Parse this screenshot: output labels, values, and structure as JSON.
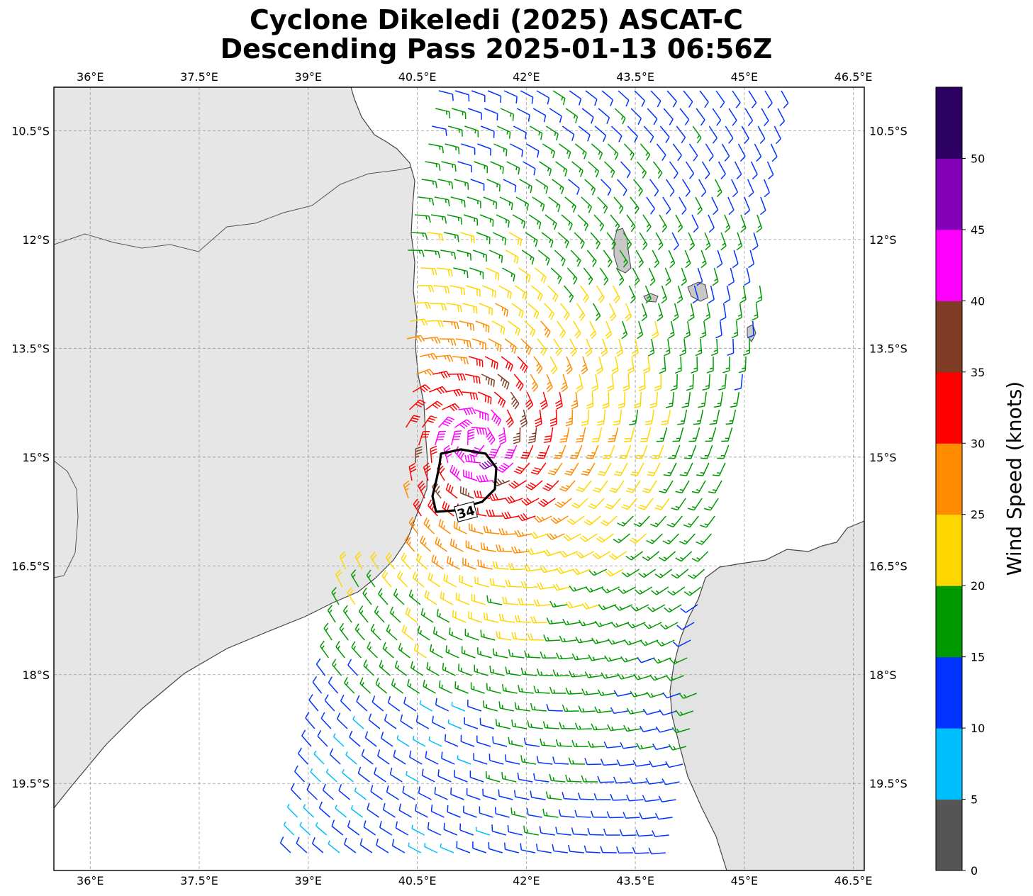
{
  "title": {
    "line1": "Cyclone Dikeledi (2025) ASCAT-C",
    "line2": "Descending Pass 2025-01-13 06:56Z"
  },
  "map": {
    "lon_range": [
      35.5,
      46.65
    ],
    "lat_range": [
      -20.7,
      -9.9
    ],
    "lon_ticks": [
      {
        "value": 36.0,
        "label": "36°E"
      },
      {
        "value": 37.5,
        "label": "37.5°E"
      },
      {
        "value": 39.0,
        "label": "39°E"
      },
      {
        "value": 40.5,
        "label": "40.5°E"
      },
      {
        "value": 42.0,
        "label": "42°E"
      },
      {
        "value": 43.5,
        "label": "43.5°E"
      },
      {
        "value": 45.0,
        "label": "45°E"
      },
      {
        "value": 46.5,
        "label": "46.5°E"
      }
    ],
    "lat_ticks": [
      {
        "value": -10.5,
        "label": "10.5°S"
      },
      {
        "value": -12.0,
        "label": "12°S"
      },
      {
        "value": -13.5,
        "label": "13.5°S"
      },
      {
        "value": -15.0,
        "label": "15°S"
      },
      {
        "value": -16.5,
        "label": "16.5°S"
      },
      {
        "value": -18.0,
        "label": "18°S"
      },
      {
        "value": -19.5,
        "label": "19.5°S"
      }
    ],
    "gridlines": true,
    "storm_center": {
      "lon": 41.3,
      "lat": -14.8
    },
    "contour_label": "34",
    "land_color": "#e6e6e6",
    "coast_color": "#444444"
  },
  "colorbar": {
    "label": "Wind Speed (knots)",
    "bins": [
      {
        "from": 0,
        "to": 5,
        "color": "#555555"
      },
      {
        "from": 5,
        "to": 10,
        "color": "#00bfff"
      },
      {
        "from": 10,
        "to": 15,
        "color": "#0033ff"
      },
      {
        "from": 15,
        "to": 20,
        "color": "#009900"
      },
      {
        "from": 20,
        "to": 25,
        "color": "#ffd700"
      },
      {
        "from": 25,
        "to": 30,
        "color": "#ff8c00"
      },
      {
        "from": 30,
        "to": 35,
        "color": "#ff0000"
      },
      {
        "from": 35,
        "to": 40,
        "color": "#803d26"
      },
      {
        "from": 40,
        "to": 45,
        "color": "#ff00ff"
      },
      {
        "from": 45,
        "to": 50,
        "color": "#8400b8"
      },
      {
        "from": 50,
        "to": 55,
        "color": "#2d0064"
      }
    ],
    "ticks": [
      "0",
      "5",
      "10",
      "15",
      "20",
      "25",
      "30",
      "35",
      "40",
      "45",
      "50"
    ]
  }
}
